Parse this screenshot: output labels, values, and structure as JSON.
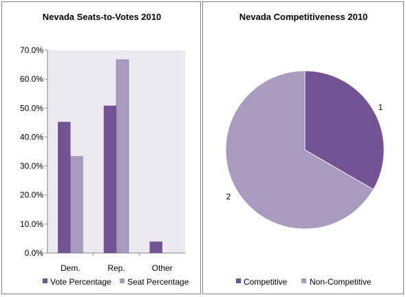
{
  "colors": {
    "series_dark": "#735394",
    "series_light": "#a99bc0",
    "plot_area": "#ece9f1",
    "axis": "#868686"
  },
  "chart_data": [
    {
      "type": "bar",
      "title": "Nevada Seats-to-Votes 2010",
      "categories": [
        "Dem.",
        "Rep.",
        "Other"
      ],
      "series": [
        {
          "name": "Vote Percentage",
          "values": [
            45.2,
            50.8,
            3.9
          ]
        },
        {
          "name": "Seat Percentage",
          "values": [
            33.3,
            66.7,
            0
          ]
        }
      ],
      "ylim": [
        0,
        70
      ],
      "yticks": [
        "0.0%",
        "10.0%",
        "20.0%",
        "30.0%",
        "40.0%",
        "50.0%",
        "60.0%",
        "70.0%"
      ],
      "grid": false,
      "legend": "bottom"
    },
    {
      "type": "pie",
      "title": "Nevada Competitiveness 2010",
      "categories": [
        "Competitive",
        "Non-Competitive"
      ],
      "values": [
        1,
        2
      ],
      "data_labels": [
        "1",
        "2"
      ],
      "legend": "bottom"
    }
  ]
}
